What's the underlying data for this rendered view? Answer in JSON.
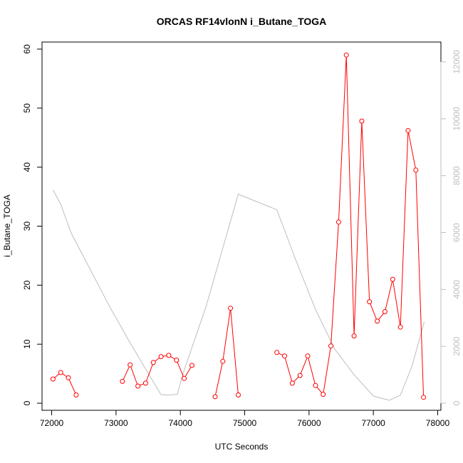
{
  "chart_data": {
    "type": "line",
    "title": "ORCAS RF14vlonN i_Butane_TOGA",
    "xlabel": "UTC Seconds",
    "ylabel": "i_Butane_TOGA",
    "xlim": [
      71850,
      78050
    ],
    "ylim": [
      -1.2,
      61.2
    ],
    "y2lim": [
      -250,
      12700
    ],
    "x_ticks": [
      72000,
      73000,
      74000,
      75000,
      76000,
      77000,
      78000
    ],
    "y_ticks": [
      0,
      10,
      20,
      30,
      40,
      50,
      60
    ],
    "y2_ticks": [
      0,
      2000,
      4000,
      6000,
      8000,
      10000,
      12000
    ],
    "series": [
      {
        "color": "#ff0000",
        "style": "line+open-circles",
        "axis": "left",
        "segments": [
          [
            [
              72020,
              4.1
            ],
            [
              72140,
              5.2
            ],
            [
              72260,
              4.3
            ],
            [
              72380,
              1.4
            ]
          ],
          [
            [
              73100,
              3.7
            ],
            [
              73220,
              6.5
            ],
            [
              73340,
              2.9
            ],
            [
              73460,
              3.4
            ],
            [
              73580,
              6.9
            ],
            [
              73700,
              7.9
            ],
            [
              73820,
              8.1
            ],
            [
              73940,
              7.3
            ],
            [
              74060,
              4.2
            ],
            [
              74180,
              6.4
            ]
          ],
          [
            [
              74540,
              1.1
            ],
            [
              74660,
              7.1
            ],
            [
              74780,
              16.1
            ],
            [
              74900,
              1.4
            ]
          ],
          [
            [
              75500,
              8.6
            ],
            [
              75620,
              8.0
            ],
            [
              75740,
              3.4
            ],
            [
              75860,
              4.7
            ],
            [
              75980,
              8.0
            ],
            [
              76100,
              3.0
            ],
            [
              76220,
              1.5
            ],
            [
              76340,
              9.7
            ],
            [
              76460,
              30.7
            ],
            [
              76580,
              59.0
            ],
            [
              76700,
              11.4
            ],
            [
              76820,
              47.8
            ],
            [
              76940,
              17.2
            ],
            [
              77060,
              13.9
            ],
            [
              77180,
              15.5
            ],
            [
              77300,
              21.0
            ],
            [
              77420,
              12.9
            ],
            [
              77540,
              46.2
            ],
            [
              77660,
              39.5
            ],
            [
              77780,
              1.0
            ]
          ]
        ]
      },
      {
        "color": "#bebebe",
        "style": "line",
        "axis": "right",
        "points": [
          [
            72020,
            7500
          ],
          [
            72140,
            7000
          ],
          [
            72300,
            6000
          ],
          [
            72600,
            4700
          ],
          [
            72900,
            3400
          ],
          [
            73200,
            2200
          ],
          [
            73500,
            1050
          ],
          [
            73700,
            300
          ],
          [
            73800,
            280
          ],
          [
            73950,
            310
          ],
          [
            74050,
            1100
          ],
          [
            74400,
            3400
          ],
          [
            74900,
            7350
          ],
          [
            75500,
            6800
          ],
          [
            75800,
            5000
          ],
          [
            76100,
            3300
          ],
          [
            76400,
            1900
          ],
          [
            76700,
            1000
          ],
          [
            77000,
            250
          ],
          [
            77250,
            100
          ],
          [
            77420,
            280
          ],
          [
            77600,
            1300
          ],
          [
            77790,
            2850
          ]
        ]
      }
    ]
  }
}
